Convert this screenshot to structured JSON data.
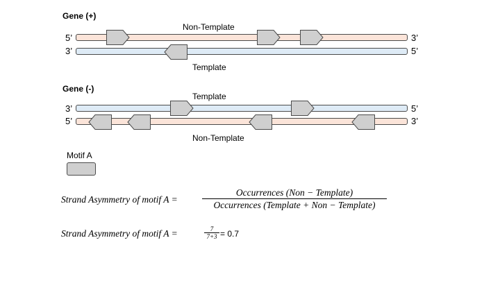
{
  "gene_plus": {
    "title": "Gene (+)",
    "top_left_end": "5’",
    "top_right_end": "3’",
    "bottom_left_end": "3’",
    "bottom_right_end": "5’",
    "top_label": "Non-Template",
    "bottom_label": "Template"
  },
  "gene_minus": {
    "title": "Gene (-)",
    "top_left_end": "3’",
    "top_right_end": "5’",
    "bottom_left_end": "5’",
    "bottom_right_end": "3’",
    "top_label": "Template",
    "bottom_label": "Non-Template"
  },
  "legend": {
    "label": "Motif A"
  },
  "colors": {
    "non_template_strand": "#fbe4d9",
    "template_strand": "#deebf6",
    "motif": "#cfcfcf",
    "outline": "#4a4a4a"
  },
  "formula": {
    "lhs": "Strand Asymmetry of motif A =",
    "numerator": "Occurrences (Non − Template)",
    "denominator": "Occurrences (Template + Non − Template)"
  },
  "example": {
    "lhs": "Strand Asymmetry of motif A =",
    "numerator": "7",
    "denominator": "7+3",
    "result": "= 0.7"
  }
}
